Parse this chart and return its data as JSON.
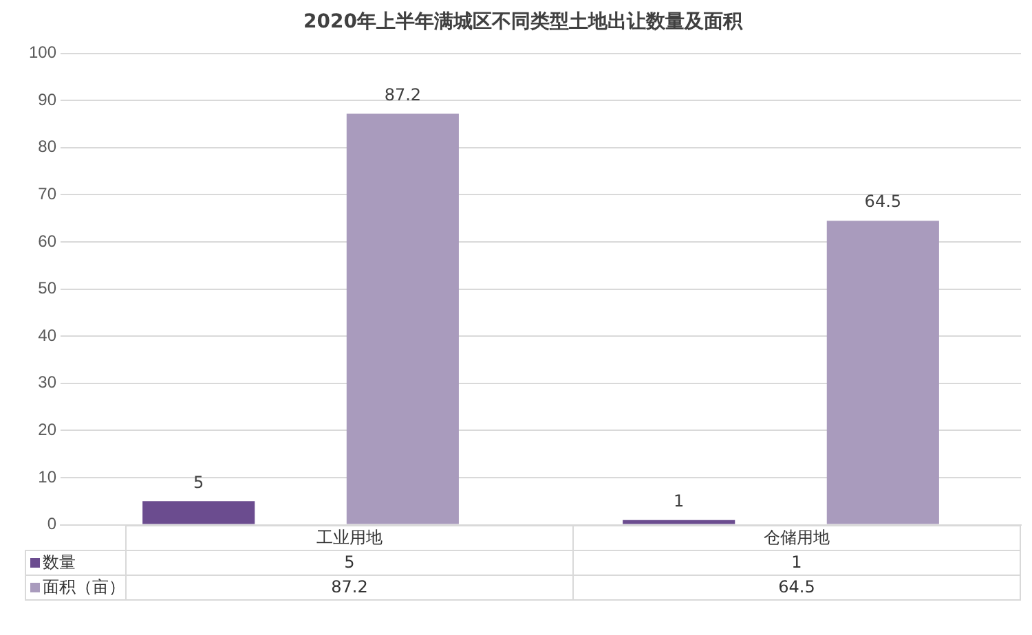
{
  "chart_data": {
    "type": "bar",
    "title": "2020年上半年满城区不同类型土地出让数量及面积",
    "categories": [
      "工业用地",
      "仓储用地"
    ],
    "series": [
      {
        "name": "数量",
        "color": "#6b4c8f",
        "values": [
          5,
          1
        ],
        "value_labels": [
          "5",
          "1"
        ]
      },
      {
        "name": "面积（亩）",
        "color": "#a99bbd",
        "values": [
          87.2,
          64.5
        ],
        "value_labels": [
          "87.2",
          "64.5"
        ]
      }
    ],
    "ylim": [
      0,
      100
    ],
    "yticks": [
      0,
      10,
      20,
      30,
      40,
      50,
      60,
      70,
      80,
      90,
      100
    ],
    "grid": "y",
    "data_labels": true,
    "legend": "bottom left"
  }
}
